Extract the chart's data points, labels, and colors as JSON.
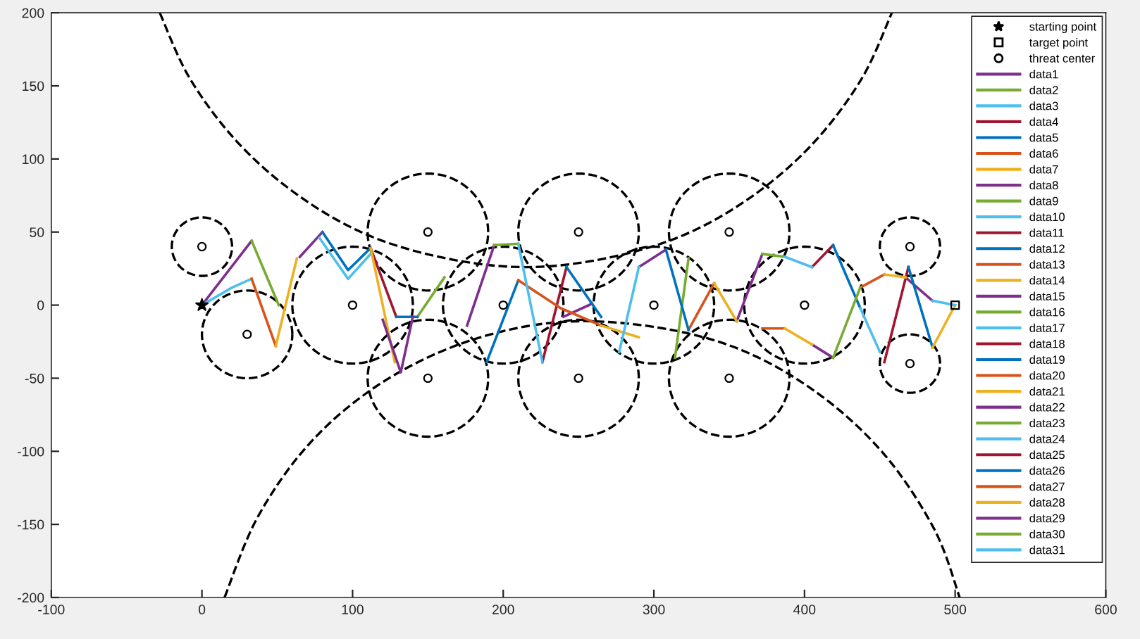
{
  "chart_data": {
    "type": "line",
    "xlim": [
      -100,
      600
    ],
    "ylim": [
      -200,
      200
    ],
    "xticks": [
      -100,
      0,
      100,
      200,
      300,
      400,
      500,
      600
    ],
    "yticks": [
      -200,
      -150,
      -100,
      -50,
      0,
      50,
      100,
      150,
      200
    ],
    "grid": false,
    "legend": "top right",
    "series": [
      {
        "type": "scatter",
        "name": "starting point",
        "marker": "star",
        "color": "#000000",
        "x": [
          0
        ],
        "values": [
          0
        ]
      },
      {
        "type": "scatter",
        "name": "target point",
        "marker": "square",
        "color": "#000000",
        "x": [
          500
        ],
        "values": [
          0
        ]
      },
      {
        "type": "scatter",
        "name": "threat center",
        "marker": "circle",
        "color": "#000000",
        "x": [
          0,
          30,
          100,
          150,
          150,
          200,
          250,
          250,
          300,
          350,
          350,
          400,
          470,
          470
        ],
        "values": [
          40,
          -20,
          0,
          50,
          -50,
          0,
          50,
          -50,
          0,
          50,
          -50,
          0,
          40,
          -40
        ]
      },
      {
        "name": "data1",
        "color": "#7e2f8e",
        "x": [
          0,
          33,
          null,
          65,
          80
        ],
        "values": [
          0,
          44,
          null,
          33,
          50
        ]
      },
      {
        "name": "data2",
        "color": "#77ac30",
        "x": [
          33,
          51
        ],
        "values": [
          44,
          0
        ]
      },
      {
        "name": "data3",
        "color": "#4dbeee",
        "x": [
          0,
          20,
          33
        ],
        "values": [
          0,
          12,
          18
        ]
      },
      {
        "name": "data4",
        "color": "#a2142f",
        "x": [
          112,
          129
        ],
        "values": [
          39,
          -8
        ]
      },
      {
        "name": "data5",
        "color": "#0072bd",
        "x": [
          80,
          97,
          112
        ],
        "values": [
          50,
          24,
          39
        ]
      },
      {
        "name": "data6",
        "color": "#d95319",
        "x": [
          33,
          49
        ],
        "values": [
          18,
          -28
        ]
      },
      {
        "name": "data7",
        "color": "#edb120",
        "x": [
          49,
          63
        ],
        "values": [
          -28,
          32
        ]
      },
      {
        "name": "data8",
        "color": "#7e2f8e",
        "x": [
          176,
          194,
          null,
          240,
          259
        ],
        "values": [
          -14,
          41,
          null,
          -8,
          1
        ]
      },
      {
        "name": "data9",
        "color": "#77ac30",
        "x": [
          143,
          161
        ],
        "values": [
          -8,
          19
        ]
      },
      {
        "name": "data10",
        "color": "#4dbeee",
        "x": [
          78,
          97,
          112
        ],
        "values": [
          46,
          18,
          35
        ]
      },
      {
        "name": "data11",
        "color": "#a2142f",
        "x": [
          226,
          242
        ],
        "values": [
          -39,
          26
        ]
      },
      {
        "name": "data12",
        "color": "#0072bd",
        "x": [
          129,
          143,
          null,
          189,
          210
        ],
        "values": [
          -8,
          -8,
          null,
          -39,
          17
        ]
      },
      {
        "name": "data13",
        "color": "#d95319",
        "x": [
          210,
          238,
          265
        ],
        "values": [
          17,
          -2,
          -14
        ]
      },
      {
        "name": "data14",
        "color": "#edb120",
        "x": [
          112,
          128
        ],
        "values": [
          39,
          -39
        ]
      },
      {
        "name": "data15",
        "color": "#7e2f8e",
        "x": [
          290,
          308,
          null,
          355,
          372
        ],
        "values": [
          26,
          38,
          null,
          -11,
          35
        ]
      },
      {
        "name": "data16",
        "color": "#77ac30",
        "x": [
          194,
          210
        ],
        "values": [
          41,
          42
        ]
      },
      {
        "name": "data17",
        "color": "#4dbeee",
        "x": [
          210,
          226
        ],
        "values": [
          42,
          -39
        ]
      },
      {
        "name": "data18",
        "color": "#a2142f",
        "x": [
          405,
          419
        ],
        "values": [
          26,
          41
        ]
      },
      {
        "name": "data19",
        "color": "#0072bd",
        "x": [
          242,
          265
        ],
        "values": [
          26,
          -8
        ]
      },
      {
        "name": "data20",
        "color": "#d95319",
        "x": [
          323,
          340
        ],
        "values": [
          -17,
          15
        ]
      },
      {
        "name": "data21",
        "color": "#edb120",
        "x": [
          265,
          290,
          null,
          340,
          355
        ],
        "values": [
          -14,
          -22,
          null,
          15,
          -11
        ]
      },
      {
        "name": "data22",
        "color": "#7e2f8e",
        "x": [
          405,
          419,
          null,
          467,
          485
        ],
        "values": [
          -27,
          -36,
          null,
          19,
          3
        ]
      },
      {
        "name": "data23",
        "color": "#77ac30",
        "x": [
          314,
          323,
          null,
          372,
          387
        ],
        "values": [
          -36,
          32,
          null,
          35,
          33
        ]
      },
      {
        "name": "data24",
        "color": "#4dbeee",
        "x": [
          277,
          290,
          null,
          387,
          405
        ],
        "values": [
          -32,
          26,
          null,
          33,
          26
        ]
      },
      {
        "name": "data25",
        "color": "#a2142f",
        "x": [
          453,
          469
        ],
        "values": [
          -39,
          26
        ]
      },
      {
        "name": "data26",
        "color": "#0072bd",
        "x": [
          308,
          323,
          null,
          419,
          437,
          null,
          469,
          485
        ],
        "values": [
          38,
          -17,
          null,
          41,
          -2,
          null,
          26,
          -29
        ]
      },
      {
        "name": "data27",
        "color": "#d95319",
        "x": [
          372,
          387,
          null,
          437,
          453
        ],
        "values": [
          -16,
          -16,
          null,
          12,
          21
        ]
      },
      {
        "name": "data28",
        "color": "#edb120",
        "x": [
          387,
          405,
          null,
          453,
          467,
          null,
          485,
          500
        ],
        "values": [
          -16,
          -27,
          null,
          21,
          19,
          null,
          -29,
          0
        ]
      },
      {
        "name": "data29",
        "color": "#7e2f8e",
        "x": [
          120,
          132,
          140
        ],
        "values": [
          -10,
          -46,
          -8
        ]
      },
      {
        "name": "data30",
        "color": "#77ac30",
        "x": [
          419,
          437
        ],
        "values": [
          -36,
          12
        ]
      },
      {
        "name": "data31",
        "color": "#4dbeee",
        "x": [
          437,
          450,
          null,
          485,
          500
        ],
        "values": [
          -2,
          -32,
          null,
          3,
          0
        ]
      },
      {
        "line_style": "dashed",
        "color": "#000000",
        "x": [
          -28,
          -8,
          24,
          64,
          110,
          162,
          215,
          268,
          320,
          366,
          406,
          438,
          458
        ],
        "values": [
          200,
          155,
          111,
          75,
          48,
          32,
          26,
          32,
          48,
          75,
          111,
          155,
          200
        ]
      },
      {
        "line_style": "dashed",
        "color": "#000000",
        "x": [
          15,
          37,
          72,
          118,
          173,
          233,
          294,
          354,
          407,
          452,
          486,
          503
        ],
        "values": [
          -200,
          -145,
          -94,
          -54,
          -26,
          -12,
          -14,
          -29,
          -59,
          -101,
          -153,
          -200
        ]
      }
    ]
  }
}
